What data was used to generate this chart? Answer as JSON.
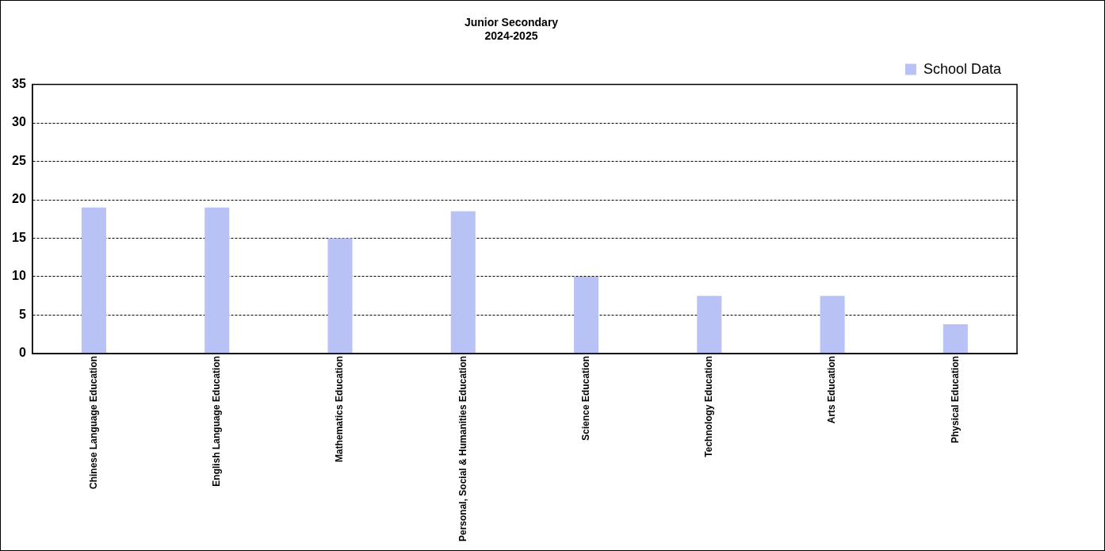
{
  "chart_data": {
    "type": "bar",
    "title": "Junior Secondary\n2024-2025",
    "categories": [
      "Chinese Language Education",
      "English Language Education",
      "Mathematics Education",
      "Personal, Social & Humanities Education",
      "Science Education",
      "Technology Education",
      "Arts Education",
      "Physical Education"
    ],
    "series": [
      {
        "name": "School Data",
        "color": "#b8c2f5",
        "values": [
          19,
          19,
          15,
          18.5,
          10,
          7.5,
          7.5,
          3.8
        ]
      }
    ],
    "ylim": [
      0,
      35
    ],
    "yticks": [
      0,
      5,
      10,
      15,
      20,
      25,
      30,
      35
    ],
    "grid": "y",
    "legend": "top right"
  }
}
